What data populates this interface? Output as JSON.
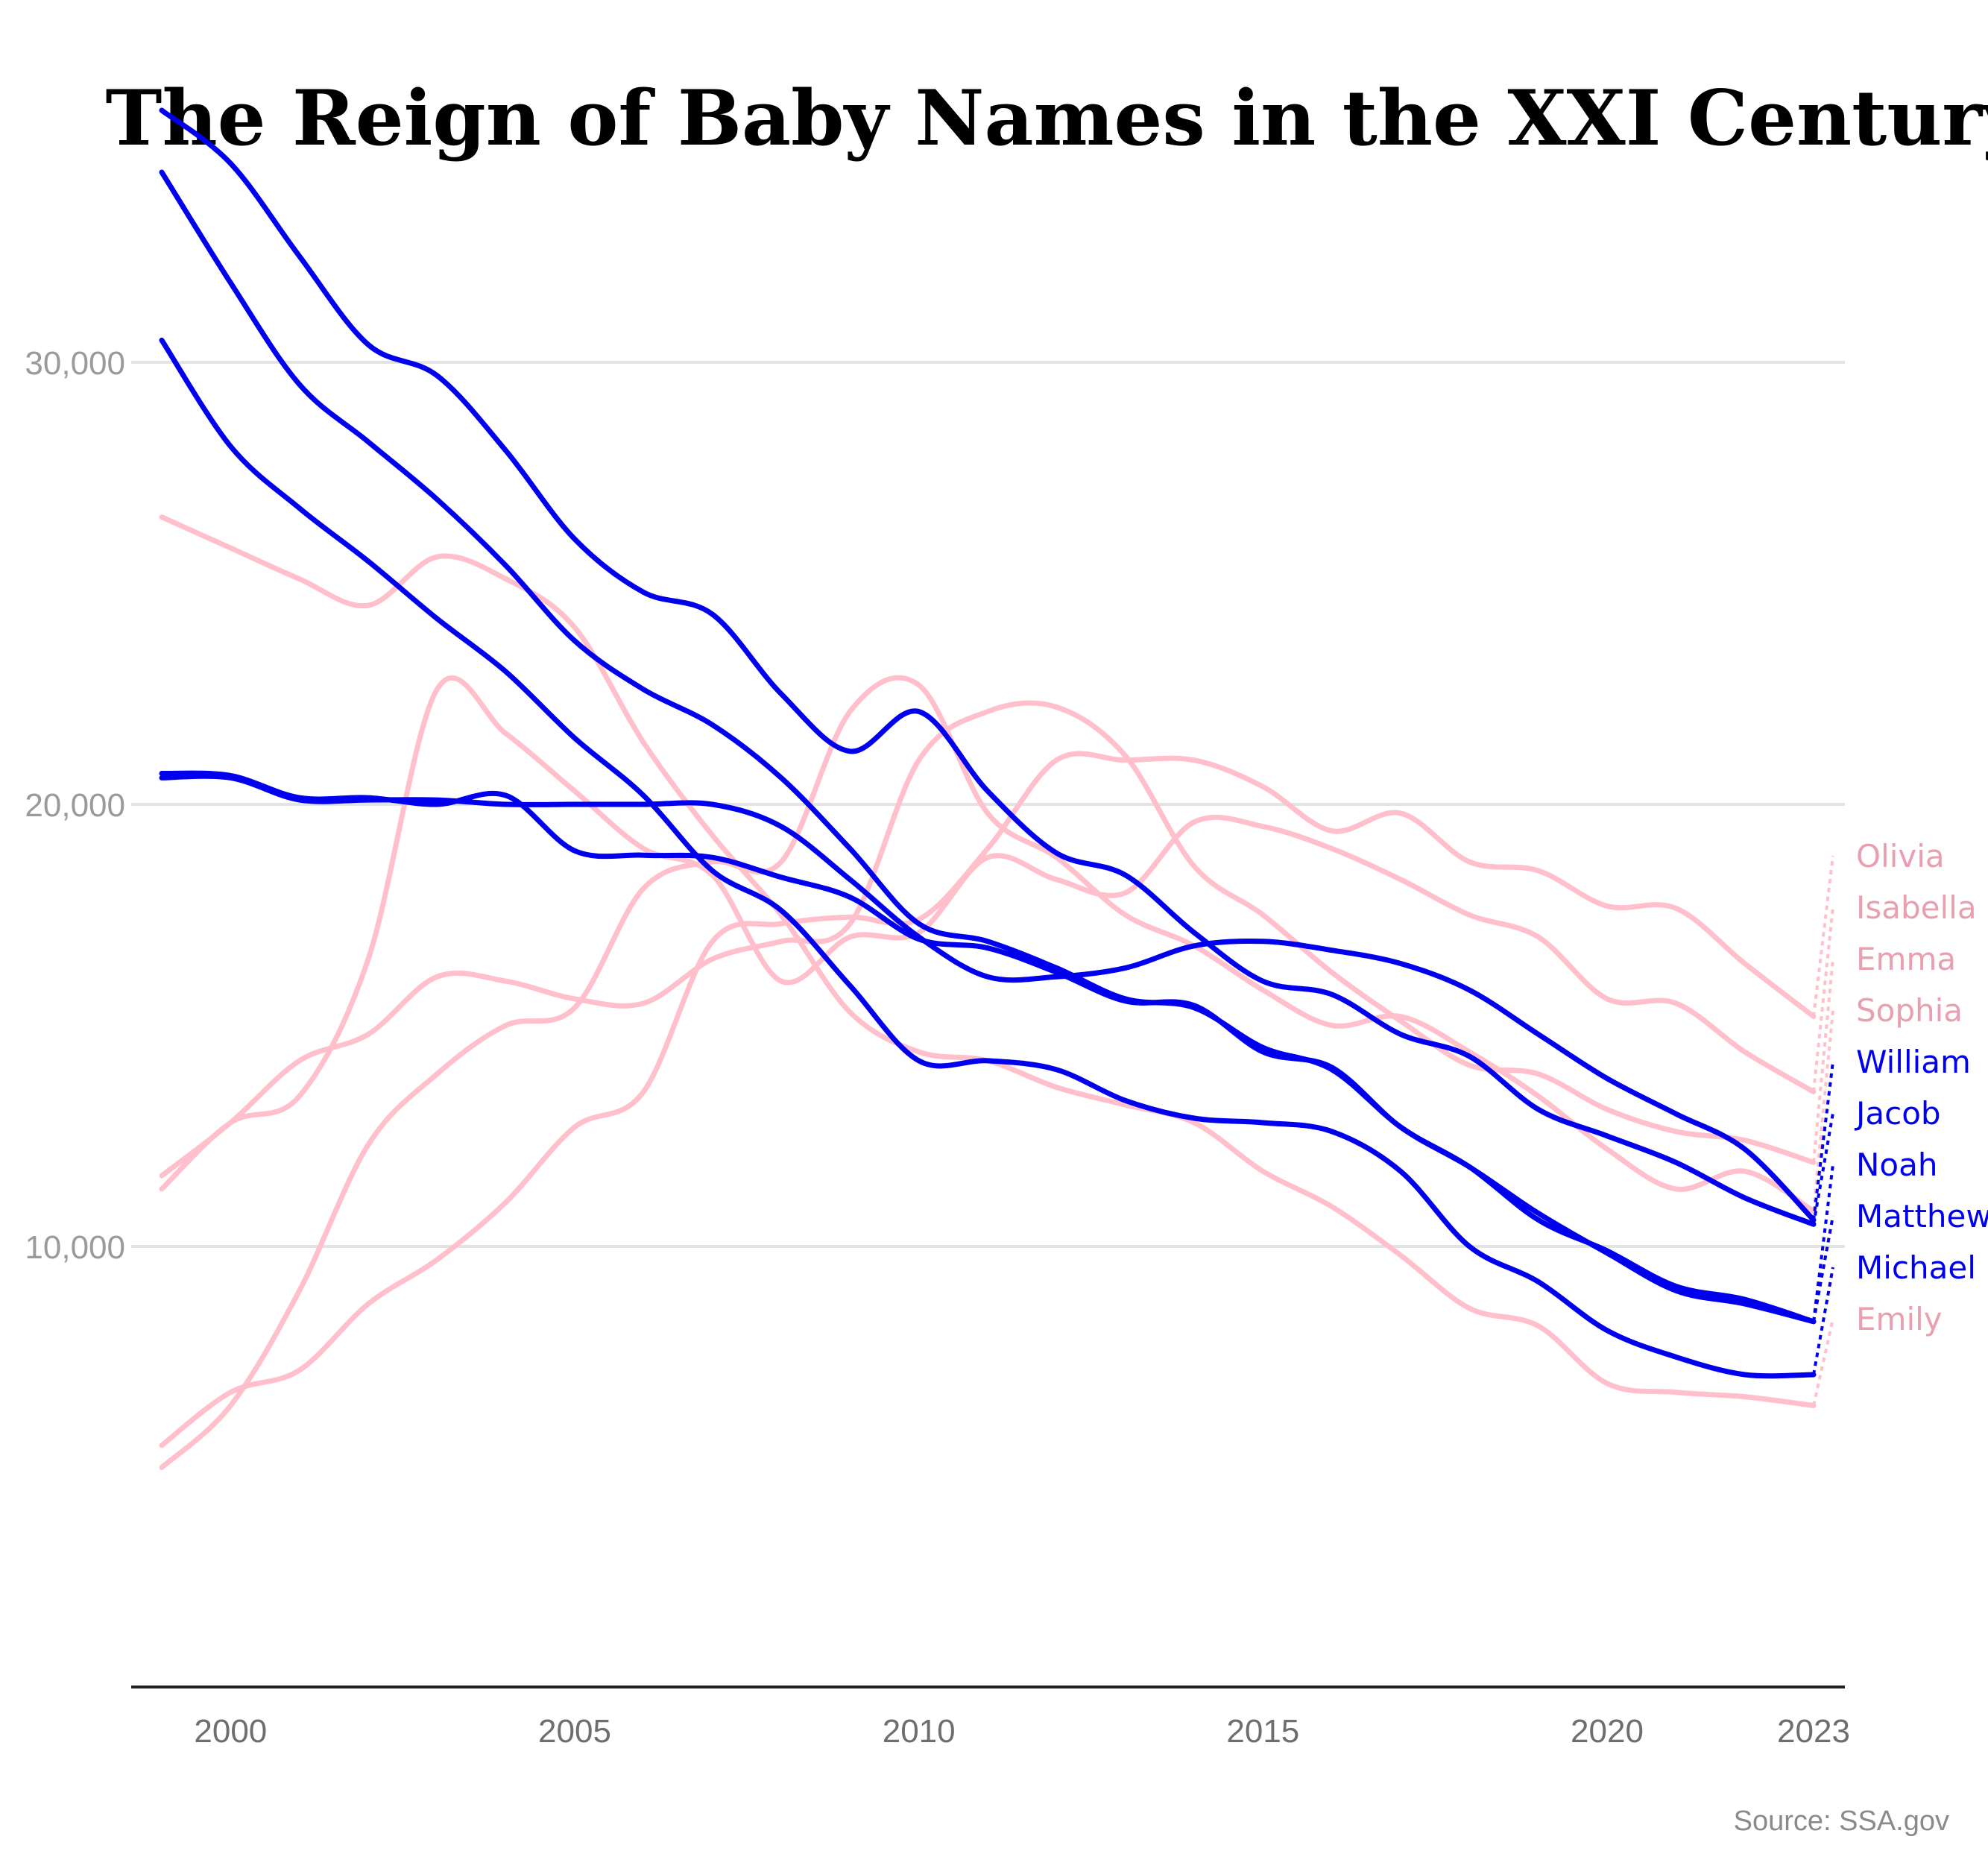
{
  "chart_data": {
    "type": "line",
    "title": "The Reign of Baby Names in the XXI Century",
    "source": "Source: SSA.gov",
    "xlabel": "",
    "ylabel": "",
    "x": [
      1999,
      2000,
      2001,
      2002,
      2003,
      2004,
      2005,
      2006,
      2007,
      2008,
      2009,
      2010,
      2011,
      2012,
      2013,
      2014,
      2015,
      2016,
      2017,
      2018,
      2019,
      2020,
      2021,
      2022,
      2023
    ],
    "xticks": [
      2000,
      2005,
      2010,
      2015,
      2020,
      2023
    ],
    "xtick_labels": [
      "2000",
      "2005",
      "2010",
      "2015",
      "2020",
      "2023"
    ],
    "yticks": [
      10000,
      20000,
      30000
    ],
    "ytick_labels": [
      "10,000",
      "20,000",
      "30,000"
    ],
    "xlim": [
      1998.6,
      2023.5
    ],
    "ylim": [
      1000,
      37500
    ],
    "grid": true,
    "legend": "direct labels at right end",
    "colors": {
      "boys": "#0000ee",
      "girls": "#ffc0cb",
      "girls_label": "#e8a0b0"
    },
    "series": [
      {
        "name": "Noah",
        "group": "boys",
        "values": [
          20700,
          20650,
          20150,
          20150,
          20000,
          20200,
          18950,
          18850,
          18800,
          18350,
          17900,
          16950,
          16750,
          16200,
          15550,
          15450,
          14400,
          14050,
          12700,
          11800,
          10750,
          9850,
          9000,
          8700,
          8300
        ]
      },
      {
        "name": "Olivia",
        "group": "girls",
        "values": [
          5500,
          6700,
          7200,
          8700,
          9700,
          11000,
          12700,
          13500,
          16900,
          17300,
          17450,
          17400,
          19000,
          21000,
          21000,
          21000,
          20400,
          19400,
          19800,
          18700,
          18500,
          17700,
          17650,
          16400,
          15200
        ]
      },
      {
        "name": "Emma",
        "group": "girls",
        "values": [
          11600,
          12800,
          14200,
          14800,
          16100,
          16000,
          15600,
          15500,
          16500,
          16900,
          17300,
          21000,
          22100,
          22200,
          21100,
          18600,
          17500,
          16200,
          15100,
          14100,
          13900,
          13100,
          12600,
          12400,
          11900
        ]
      },
      {
        "name": "Sophia",
        "group": "girls",
        "values": [
          5000,
          6400,
          9000,
          12300,
          13900,
          15000,
          15400,
          18100,
          18700,
          18700,
          22100,
          22700,
          19800,
          18800,
          17500,
          16800,
          15800,
          15000,
          15200,
          14400,
          13400,
          12200,
          11300,
          11700,
          10800
        ]
      },
      {
        "name": "Isabella",
        "group": "girls",
        "values": [
          11300,
          12800,
          13400,
          16500,
          22600,
          21600,
          20300,
          19000,
          18400,
          16000,
          17000,
          17100,
          18800,
          18300,
          18000,
          19600,
          19500,
          19000,
          18300,
          17500,
          17000,
          15600,
          15500,
          14400,
          13500
        ]
      },
      {
        "name": "William",
        "group": "boys",
        "values": [
          20600,
          20600,
          20100,
          20100,
          20100,
          20000,
          20000,
          20000,
          20000,
          19500,
          18300,
          17000,
          16100,
          16100,
          16300,
          16800,
          16900,
          16700,
          16400,
          15800,
          14800,
          13800,
          13000,
          12200,
          10600
        ]
      },
      {
        "name": "Michael",
        "group": "boys",
        "values": [
          30500,
          28100,
          26700,
          25500,
          24200,
          23000,
          21500,
          20200,
          18500,
          17600,
          15900,
          14200,
          14200,
          14000,
          13300,
          12900,
          12800,
          12600,
          11700,
          10000,
          9200,
          8100,
          7500,
          7100,
          7100
        ]
      },
      {
        "name": "Matthew",
        "group": "boys",
        "values": [
          34300,
          31800,
          29500,
          28200,
          26900,
          25400,
          23700,
          22600,
          21800,
          20600,
          19000,
          17300,
          16900,
          16300,
          15600,
          15400,
          14500,
          14000,
          12700,
          11800,
          10600,
          9900,
          9100,
          8800,
          8300
        ]
      },
      {
        "name": "Jacob",
        "group": "boys",
        "values": [
          35700,
          34500,
          32400,
          30400,
          29700,
          28000,
          26000,
          24800,
          24300,
          22500,
          21200,
          22100,
          20300,
          18900,
          18400,
          17100,
          16000,
          15700,
          14800,
          14300,
          13100,
          12500,
          11900,
          11100,
          10500
        ]
      },
      {
        "name": "Emily",
        "group": "girls",
        "values": [
          26500,
          25800,
          25100,
          24500,
          25600,
          25100,
          24000,
          21400,
          19300,
          17500,
          15300,
          14400,
          14200,
          13600,
          13200,
          12800,
          11700,
          10900,
          9800,
          8600,
          8200,
          6900,
          6700,
          6600,
          6400
        ]
      }
    ],
    "end_labels": [
      {
        "name": "Noah",
        "text": "Noah",
        "group": "boys"
      },
      {
        "name": "Olivia",
        "text": "Olivia",
        "group": "girls"
      },
      {
        "name": "Emma",
        "text": "Emma",
        "group": "girls"
      },
      {
        "name": "Sophia",
        "text": "Sophia",
        "group": "girls"
      },
      {
        "name": "Isabella",
        "text": "Isabella",
        "group": "girls"
      },
      {
        "name": "William",
        "text": "William",
        "group": "boys"
      },
      {
        "name": "Michael",
        "text": "Michael",
        "group": "boys"
      },
      {
        "name": "Matthew",
        "text": "Matthew",
        "group": "boys"
      },
      {
        "name": "Jacob",
        "text": "Jacob",
        "group": "boys"
      },
      {
        "name": "Emily",
        "text": "Emily",
        "group": "girls"
      }
    ]
  }
}
